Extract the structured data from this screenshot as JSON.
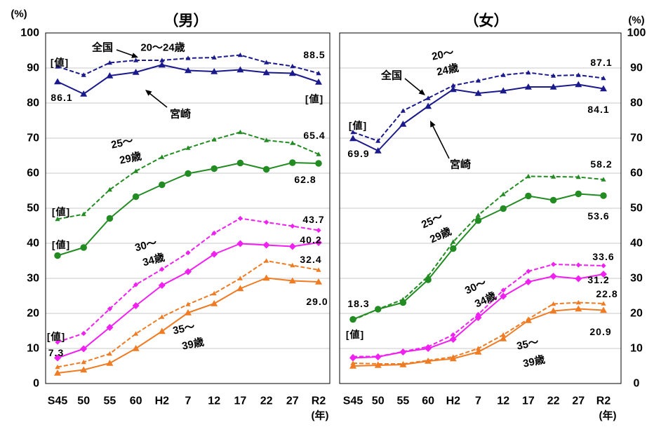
{
  "chart_data": [
    {
      "type": "line",
      "title": "（男）",
      "ylabel": "(%)",
      "xunit": "(年)",
      "ylim": [
        0,
        100
      ],
      "yticks": [
        0,
        10,
        20,
        30,
        40,
        50,
        60,
        70,
        80,
        90,
        100
      ],
      "grid": true,
      "categories": [
        "S45",
        "50",
        "55",
        "60",
        "H2",
        "7",
        "12",
        "17",
        "22",
        "27",
        "R2"
      ],
      "regions": [
        "全国",
        "宮崎"
      ],
      "age_groups": [
        [
          "20～24歳"
        ],
        [
          "25～",
          "29歳"
        ],
        [
          "30～",
          "34歳"
        ],
        [
          "35～",
          "39歳"
        ]
      ],
      "series": [
        {
          "region": 0,
          "age_group": 0,
          "dashed": true,
          "marker": "triangle",
          "color": "#1a1a8c",
          "values": [
            90.4,
            88.0,
            91.5,
            92.2,
            92.2,
            92.8,
            93.0,
            93.7,
            91.6,
            90.5,
            88.5
          ]
        },
        {
          "region": 1,
          "age_group": 0,
          "dashed": false,
          "marker": "triangle",
          "color": "#1a1a8c",
          "values": [
            86.1,
            82.6,
            87.8,
            88.8,
            90.9,
            89.3,
            89.0,
            89.5,
            88.7,
            88.5,
            86.0
          ]
        },
        {
          "region": 0,
          "age_group": 1,
          "dashed": true,
          "marker": "triangle",
          "color": "#228b22",
          "values": [
            46.9,
            48.3,
            55.3,
            60.6,
            64.6,
            67.2,
            69.6,
            71.7,
            69.4,
            68.6,
            65.4
          ]
        },
        {
          "region": 1,
          "age_group": 1,
          "dashed": false,
          "marker": "circle",
          "color": "#228b22",
          "values": [
            36.5,
            38.8,
            47.1,
            53.3,
            56.7,
            59.9,
            61.3,
            62.9,
            61.1,
            63.0,
            62.8
          ]
        },
        {
          "region": 0,
          "age_group": 2,
          "dashed": true,
          "marker": "diamond",
          "color": "#f020f0",
          "values": [
            11.8,
            14.3,
            21.3,
            28.2,
            32.6,
            37.3,
            42.9,
            47.1,
            46.0,
            44.9,
            43.7
          ]
        },
        {
          "region": 1,
          "age_group": 2,
          "dashed": false,
          "marker": "diamond",
          "color": "#f020f0",
          "values": [
            7.3,
            9.9,
            16.0,
            22.2,
            28.0,
            31.9,
            36.9,
            39.9,
            39.5,
            39.1,
            40.2
          ]
        },
        {
          "region": 0,
          "age_group": 3,
          "dashed": true,
          "marker": "triangle",
          "color": "#ef7b22",
          "values": [
            4.7,
            6.1,
            8.5,
            14.2,
            19.0,
            22.6,
            25.7,
            30.0,
            35.0,
            33.7,
            32.4
          ]
        },
        {
          "region": 1,
          "age_group": 3,
          "dashed": false,
          "marker": "triangle",
          "color": "#ef7b22",
          "values": [
            3.0,
            3.9,
            5.8,
            10.0,
            14.9,
            20.2,
            22.8,
            27.1,
            30.1,
            29.3,
            29.0
          ]
        }
      ],
      "data_labels": [
        "[値]",
        "86.1",
        "88.5",
        "[値]",
        "65.4",
        "62.8",
        "[値]",
        "[値]",
        "43.7",
        "40.2",
        "32.4",
        "29.0",
        "[値]",
        "7.3"
      ]
    },
    {
      "type": "line",
      "title": "（女）",
      "ylabel": "(%)",
      "xunit": "(年)",
      "ylim": [
        0,
        100
      ],
      "yticks": [
        0,
        10,
        20,
        30,
        40,
        50,
        60,
        70,
        80,
        90,
        100
      ],
      "grid": true,
      "categories": [
        "S45",
        "50",
        "55",
        "60",
        "H2",
        "7",
        "12",
        "17",
        "22",
        "27",
        "R2"
      ],
      "regions": [
        "全国",
        "宮崎"
      ],
      "age_groups": [
        [
          "20～",
          "24歳"
        ],
        [
          "25～",
          "29歳"
        ],
        [
          "30～",
          "34歳"
        ],
        [
          "35～",
          "39歳"
        ]
      ],
      "series": [
        {
          "region": 0,
          "age_group": 0,
          "dashed": true,
          "marker": "triangle",
          "color": "#1a1a8c",
          "values": [
            71.7,
            69.2,
            77.8,
            81.4,
            85.0,
            86.4,
            88.0,
            88.7,
            87.8,
            88.0,
            87.1
          ]
        },
        {
          "region": 1,
          "age_group": 0,
          "dashed": false,
          "marker": "triangle",
          "color": "#1a1a8c",
          "values": [
            69.9,
            66.4,
            74.0,
            79.1,
            83.9,
            82.8,
            83.5,
            84.6,
            84.6,
            85.3,
            84.1
          ]
        },
        {
          "region": 0,
          "age_group": 1,
          "dashed": true,
          "marker": "triangle",
          "color": "#228b22",
          "values": [
            18.1,
            21.2,
            24.0,
            30.6,
            40.4,
            48.0,
            54.0,
            59.1,
            59.0,
            58.9,
            58.2
          ]
        },
        {
          "region": 1,
          "age_group": 1,
          "dashed": false,
          "marker": "circle",
          "color": "#228b22",
          "values": [
            18.3,
            21.2,
            23.1,
            29.6,
            38.5,
            46.5,
            49.9,
            53.5,
            52.3,
            54.1,
            53.6
          ]
        },
        {
          "region": 0,
          "age_group": 2,
          "dashed": true,
          "marker": "diamond",
          "color": "#f020f0",
          "values": [
            7.7,
            7.7,
            9.1,
            10.5,
            13.9,
            19.7,
            26.6,
            32.0,
            34.0,
            33.8,
            33.6
          ]
        },
        {
          "region": 1,
          "age_group": 2,
          "dashed": false,
          "marker": "diamond",
          "color": "#f020f0",
          "values": [
            7.3,
            7.6,
            9.0,
            10.0,
            12.6,
            18.8,
            24.9,
            29.0,
            30.6,
            29.9,
            31.2
          ]
        },
        {
          "region": 0,
          "age_group": 3,
          "dashed": true,
          "marker": "triangle",
          "color": "#ef7b22",
          "values": [
            5.8,
            5.6,
            5.6,
            6.6,
            7.6,
            10.0,
            13.9,
            18.4,
            22.7,
            23.1,
            22.8
          ]
        },
        {
          "region": 1,
          "age_group": 3,
          "dashed": false,
          "marker": "triangle",
          "color": "#ef7b22",
          "values": [
            5.0,
            5.2,
            5.4,
            6.4,
            7.1,
            9.0,
            12.8,
            18.0,
            20.7,
            21.3,
            20.9
          ]
        }
      ],
      "data_labels": [
        "87.1",
        "[値]",
        "69.9",
        "84.1",
        "58.2",
        "53.6",
        "33.6",
        "31.2",
        "22.8",
        "20.9",
        "18.3",
        "[値]"
      ]
    }
  ]
}
